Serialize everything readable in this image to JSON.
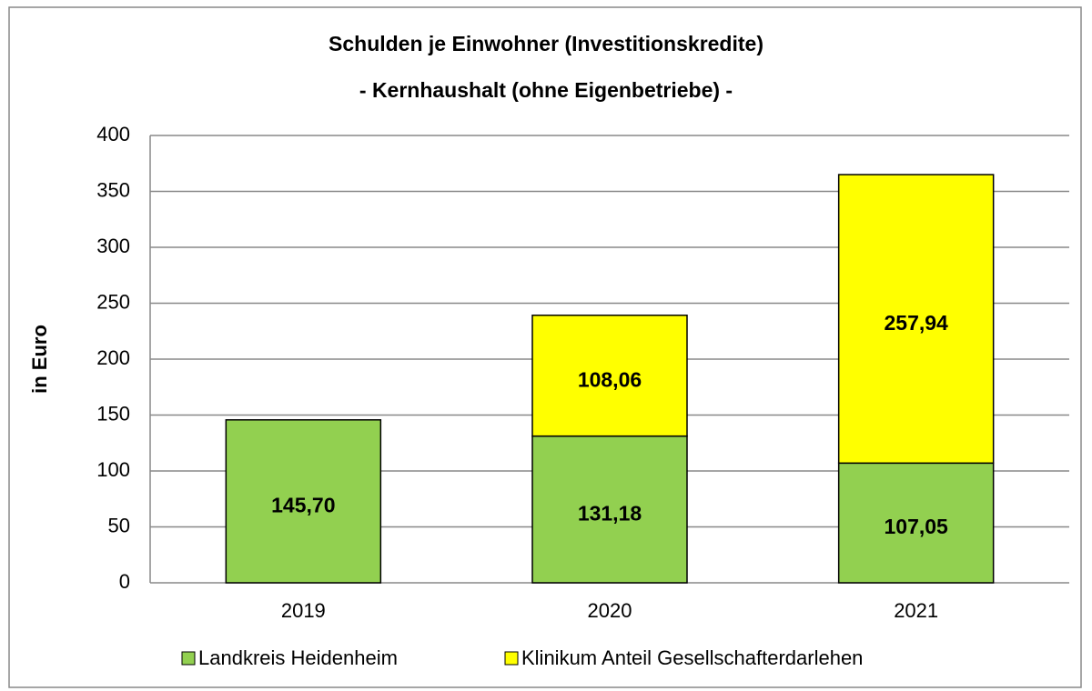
{
  "chart_data": {
    "type": "stacked_bar",
    "title": "Schulden je Einwohner (Investitionskredite)",
    "subtitle": "- Kernhaushalt (ohne Eigenbetriebe) -",
    "y_label": "in Euro",
    "categories": [
      "2019",
      "2020",
      "2021"
    ],
    "series": [
      {
        "name": "Landkreis Heidenheim",
        "color": "#92d050",
        "values": [
          145.7,
          131.18,
          107.05
        ],
        "value_labels": [
          "145,70",
          "131,18",
          "107,05"
        ]
      },
      {
        "name": "Klinikum Anteil Gesellschafterdarlehen",
        "color": "#ffff00",
        "values": [
          null,
          108.06,
          257.94
        ],
        "value_labels": [
          null,
          "108,06",
          "257,94"
        ]
      }
    ],
    "ylim": [
      0,
      400
    ],
    "yticks": [
      0,
      50,
      100,
      150,
      200,
      250,
      300,
      350,
      400
    ],
    "grid": true,
    "legend": "bottom"
  }
}
